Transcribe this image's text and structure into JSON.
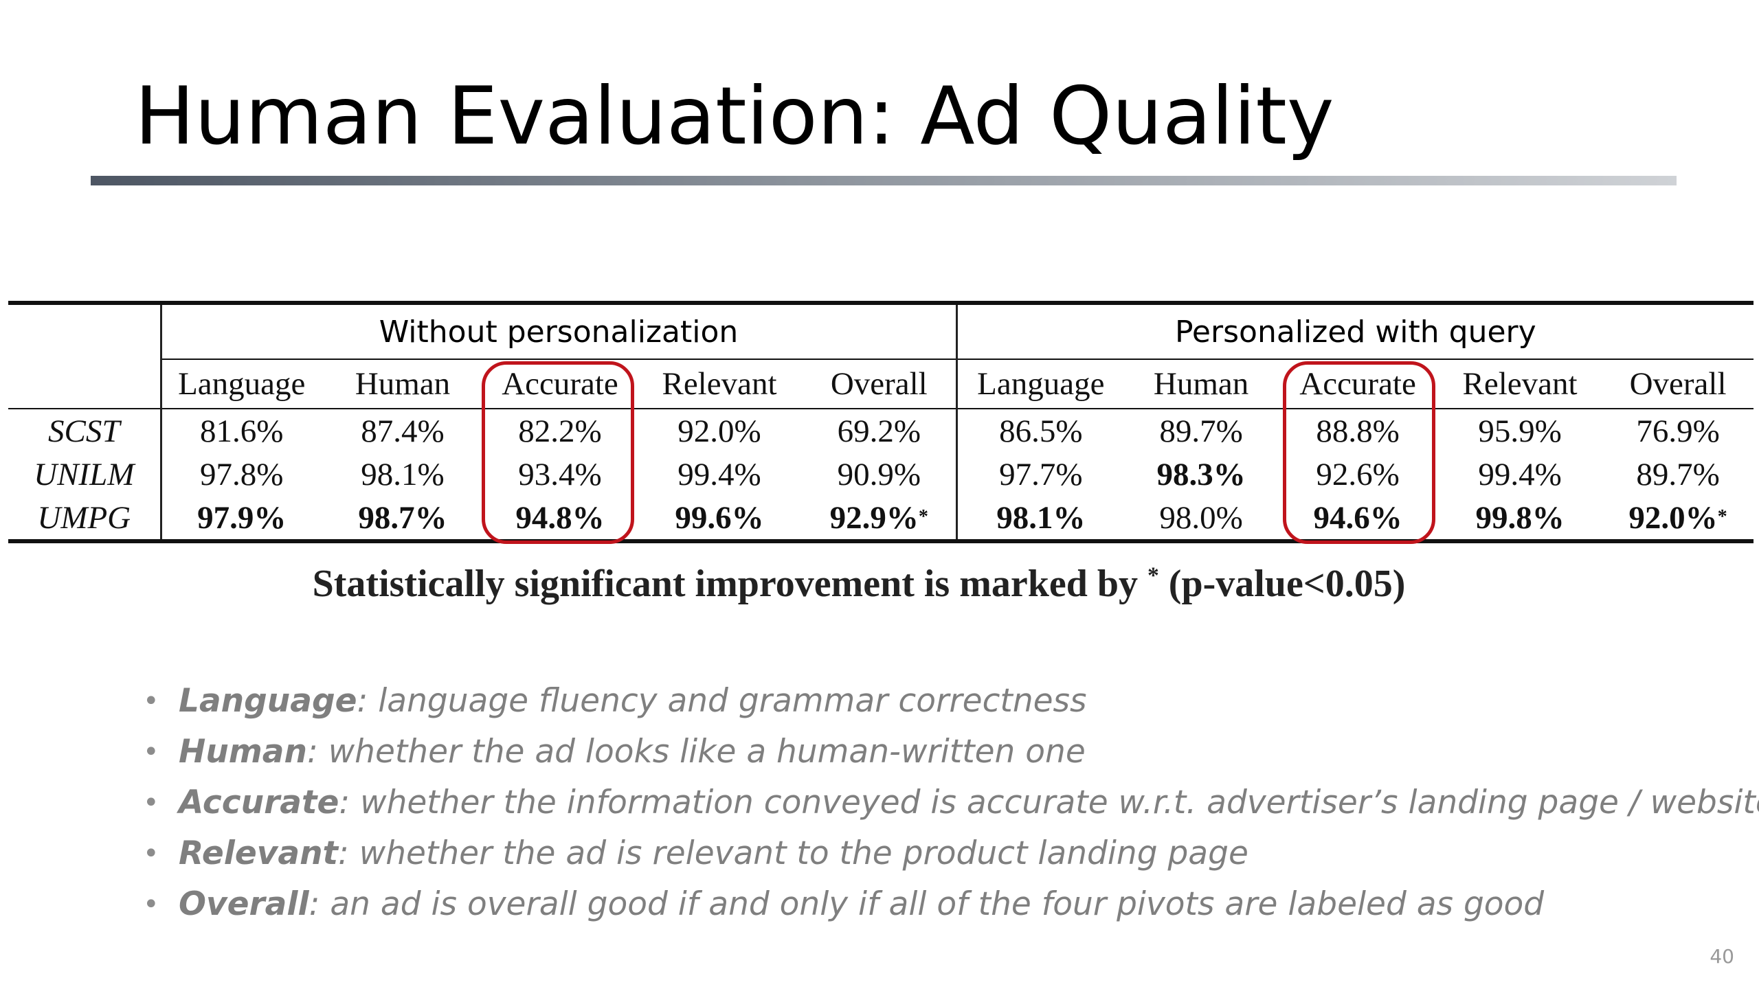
{
  "slide": {
    "title": "Human Evaluation: Ad Quality",
    "page_number": "40"
  },
  "table": {
    "groups": [
      "Without personalization",
      "Personalized with query"
    ],
    "columns": [
      "Language",
      "Human",
      "Accurate",
      "Relevant",
      "Overall",
      "Language",
      "Human",
      "Accurate",
      "Relevant",
      "Overall"
    ],
    "rows": [
      {
        "name": "SCST",
        "cells": [
          {
            "v": "81.6%",
            "bold": false
          },
          {
            "v": "87.4%",
            "bold": false
          },
          {
            "v": "82.2%",
            "bold": false
          },
          {
            "v": "92.0%",
            "bold": false
          },
          {
            "v": "69.2%",
            "bold": false
          },
          {
            "v": "86.5%",
            "bold": false
          },
          {
            "v": "89.7%",
            "bold": false
          },
          {
            "v": "88.8%",
            "bold": false
          },
          {
            "v": "95.9%",
            "bold": false
          },
          {
            "v": "76.9%",
            "bold": false
          }
        ]
      },
      {
        "name": "UNILM",
        "cells": [
          {
            "v": "97.8%",
            "bold": false
          },
          {
            "v": "98.1%",
            "bold": false
          },
          {
            "v": "93.4%",
            "bold": false
          },
          {
            "v": "99.4%",
            "bold": false
          },
          {
            "v": "90.9%",
            "bold": false
          },
          {
            "v": "97.7%",
            "bold": false
          },
          {
            "v": "98.3%",
            "bold": true
          },
          {
            "v": "92.6%",
            "bold": false
          },
          {
            "v": "99.4%",
            "bold": false
          },
          {
            "v": "89.7%",
            "bold": false
          }
        ]
      },
      {
        "name": "UMPG",
        "cells": [
          {
            "v": "97.9%",
            "bold": true
          },
          {
            "v": "98.7%",
            "bold": true
          },
          {
            "v": "94.8%",
            "bold": true
          },
          {
            "v": "99.6%",
            "bold": true
          },
          {
            "v": "92.9%",
            "bold": true,
            "sup": "*"
          },
          {
            "v": "98.1%",
            "bold": true
          },
          {
            "v": "98.0%",
            "bold": false
          },
          {
            "v": "94.6%",
            "bold": true
          },
          {
            "v": "99.8%",
            "bold": true
          },
          {
            "v": "92.0%",
            "bold": true,
            "sup": "*"
          }
        ]
      }
    ],
    "highlight_color": "#c0141c"
  },
  "footnote": {
    "before": "Statistically significant improvement is marked by ",
    "star": "*",
    "after": " (p-value<0.05)"
  },
  "definitions": [
    {
      "term": "Language",
      "text": ": language fluency and grammar correctness"
    },
    {
      "term": "Human",
      "text": ": whether the ad looks like a human-written one"
    },
    {
      "term": "Accurate",
      "text": ": whether the information conveyed is accurate w.r.t. advertiser’s landing page / website"
    },
    {
      "term": "Relevant",
      "text": ": whether the ad is relevant to the product landing page"
    },
    {
      "term": "Overall",
      "text": ": an ad is overall good if and only if all of the four pivots are labeled as good"
    }
  ],
  "bullet_glyph": "•"
}
